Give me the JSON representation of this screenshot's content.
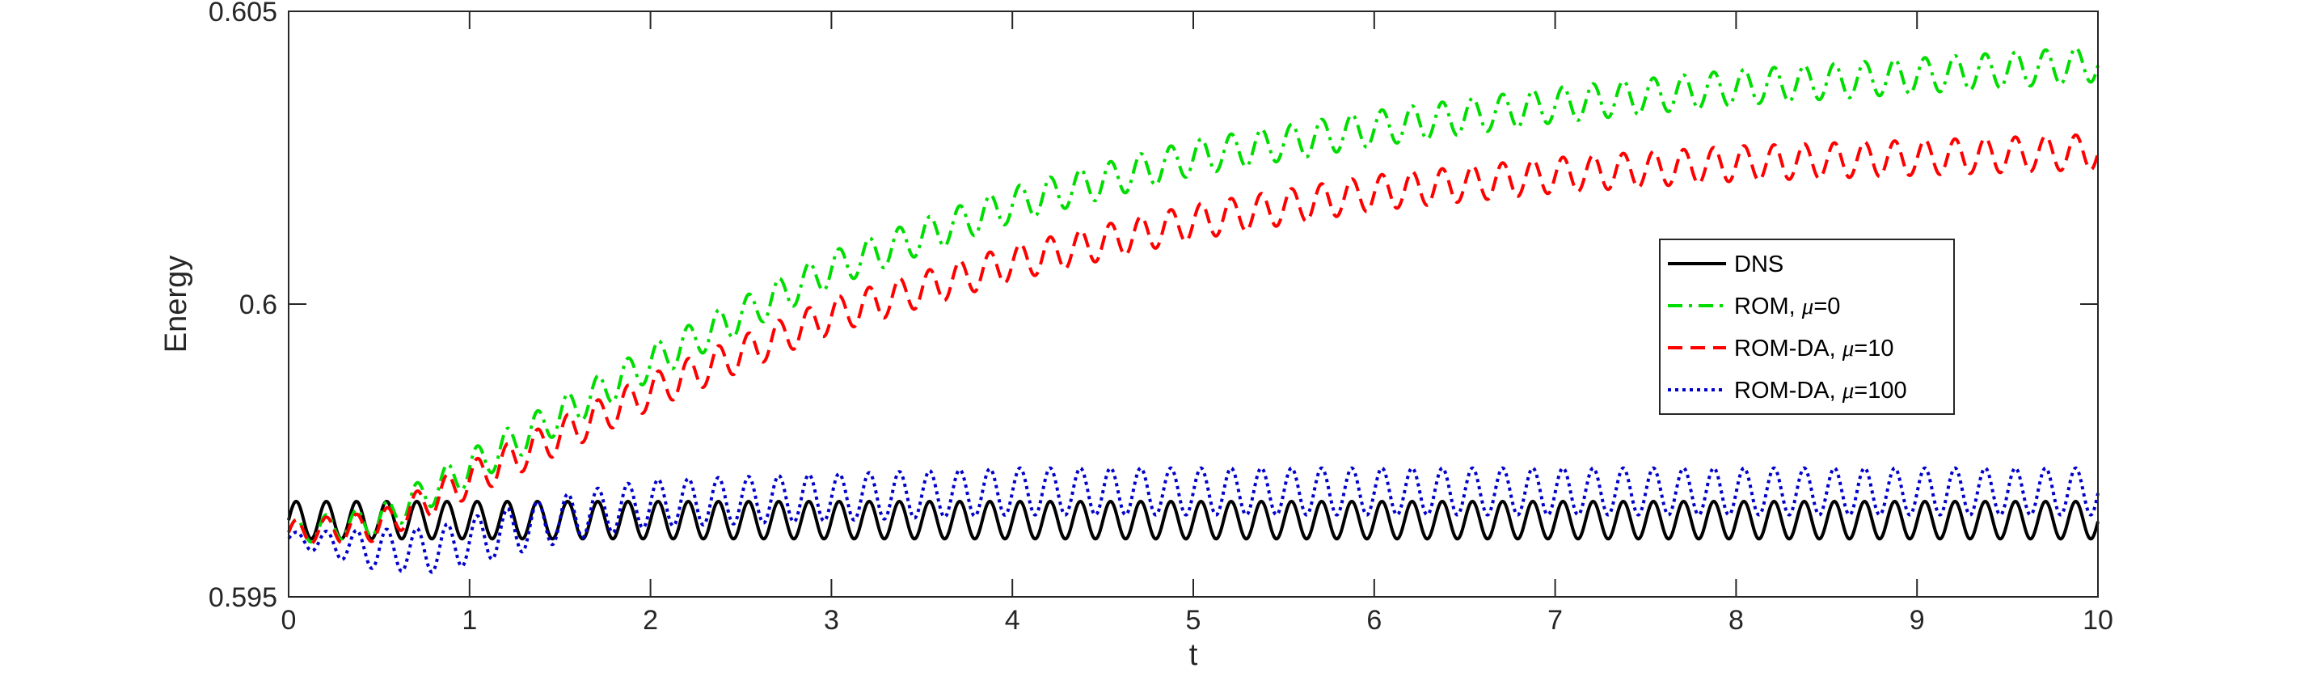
{
  "chart_data": {
    "type": "line",
    "xlabel": "t",
    "ylabel": "Energy",
    "xlim": [
      0,
      10
    ],
    "ylim": [
      0.595,
      0.605
    ],
    "xticks": [
      0,
      1,
      2,
      3,
      4,
      5,
      6,
      7,
      8,
      9,
      10
    ],
    "xtick_labels": [
      "0",
      "1",
      "2",
      "3",
      "4",
      "5",
      "6",
      "7",
      "8",
      "9",
      "10"
    ],
    "yticks": [
      0.595,
      0.6,
      0.605
    ],
    "ytick_labels": [
      "0.595",
      "0.6",
      "0.605"
    ],
    "grid": false,
    "legend_placement": "right",
    "oscillation_period": 0.1667,
    "series": [
      {
        "name": "DNS",
        "legend_prefix": "DNS",
        "legend_mu": "",
        "legend_suffix": "",
        "color": "#000000",
        "dash": "solid",
        "mean_t": [
          0,
          10
        ],
        "mean_v": [
          0.59631,
          0.59631
        ],
        "amp_t": [
          0,
          10
        ],
        "amp_v": [
          0.00032,
          0.00032
        ]
      },
      {
        "name": "ROM, μ=0",
        "legend_prefix": "ROM, ",
        "legend_mu": "μ",
        "legend_suffix": "=0",
        "color": "#00dd00",
        "dash": "dashdot",
        "mean_t": [
          0,
          0.5,
          1,
          2,
          3,
          4,
          5,
          6,
          7,
          8,
          9,
          10
        ],
        "mean_v": [
          0.5961,
          0.5963,
          0.5972,
          0.599,
          0.6006,
          0.6017,
          0.6025,
          0.603,
          0.6034,
          0.6037,
          0.6039,
          0.6041
        ],
        "amp_t": [
          0,
          1,
          3,
          10
        ],
        "amp_v": [
          0.0002,
          0.0003,
          0.0003,
          0.0003
        ]
      },
      {
        "name": "ROM-DA, μ=10",
        "legend_prefix": "ROM-DA, ",
        "legend_mu": "μ",
        "legend_suffix": "=10",
        "color": "#ff0000",
        "dash": "dashed",
        "mean_t": [
          0,
          0.5,
          1,
          2,
          3,
          4,
          5,
          6,
          7,
          8,
          9,
          10
        ],
        "mean_v": [
          0.5961,
          0.5962,
          0.597,
          0.5985,
          0.5998,
          0.6007,
          0.6014,
          0.6019,
          0.6022,
          0.6024,
          0.6025,
          0.6026
        ],
        "amp_t": [
          0,
          1,
          3,
          10
        ],
        "amp_v": [
          0.0002,
          0.0003,
          0.0003,
          0.0003
        ]
      },
      {
        "name": "ROM-DA, μ=100",
        "legend_prefix": "ROM-DA, ",
        "legend_mu": "μ",
        "legend_suffix": "=100",
        "color": "#0000cc",
        "dash": "dotted",
        "mean_t": [
          0,
          0.5,
          0.8,
          1.2,
          1.6,
          2,
          3,
          4,
          5,
          6,
          7,
          8,
          9,
          10
        ],
        "mean_v": [
          0.596,
          0.5958,
          0.5958,
          0.5961,
          0.5964,
          0.5966,
          0.5967,
          0.5968,
          0.5968,
          0.5968,
          0.5968,
          0.5968,
          0.5968,
          0.5968
        ],
        "amp_t": [
          0,
          0.5,
          1,
          2,
          10
        ],
        "amp_v": [
          0.0001,
          0.00035,
          0.0004,
          0.0004,
          0.0004
        ]
      }
    ]
  }
}
